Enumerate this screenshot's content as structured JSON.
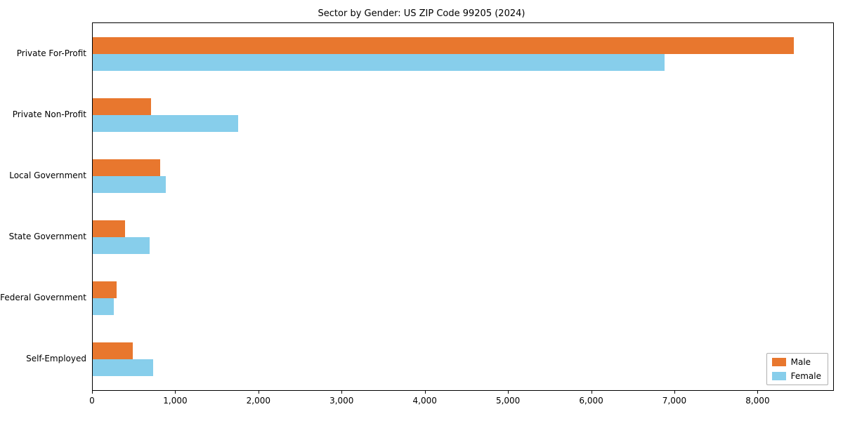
{
  "chart_data": {
    "type": "bar",
    "orientation": "horizontal",
    "title": "Sector by Gender: US ZIP Code 99205 (2024)",
    "categories": [
      "Private For-Profit",
      "Private Non-Profit",
      "Local Government",
      "State Government",
      "Federal Government",
      "Self-Employed"
    ],
    "series": [
      {
        "name": "Male",
        "color": "#e8772e",
        "values": [
          8430,
          700,
          810,
          390,
          290,
          480
        ]
      },
      {
        "name": "Female",
        "color": "#87ceeb",
        "values": [
          6870,
          1750,
          880,
          680,
          250,
          730
        ]
      }
    ],
    "xlim": [
      0,
      8900
    ],
    "xticks": [
      0,
      1000,
      2000,
      3000,
      4000,
      5000,
      6000,
      7000,
      8000
    ],
    "xtick_labels": [
      "0",
      "1,000",
      "2,000",
      "3,000",
      "4,000",
      "5,000",
      "6,000",
      "7,000",
      "8,000"
    ],
    "legend_position": "lower right",
    "grid": false,
    "background_color": "#ffffff",
    "axis_color": "#000000"
  }
}
